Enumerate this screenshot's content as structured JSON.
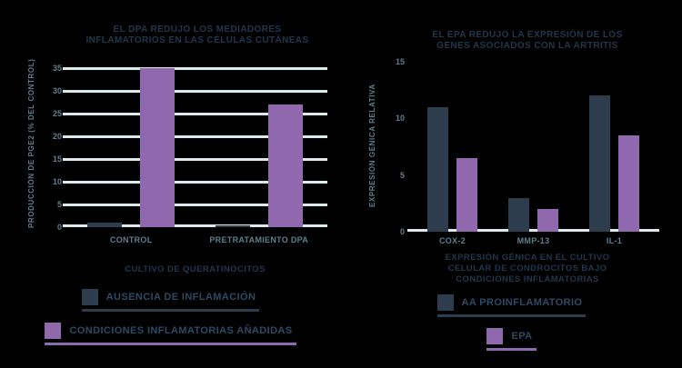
{
  "page": {
    "background": "#000000"
  },
  "colors": {
    "page_bg": "#000000",
    "dark_series": "#2E3D4E",
    "purple_series": "#9068AE",
    "title": "#22364C",
    "axis_text": "#5E7E8F",
    "legend_text": "#2E4A63",
    "gridline": "#DCE9ED"
  },
  "chart_data": [
    {
      "type": "bar",
      "title": "EL DPA REDUJO LOS MEDIADORES INFLAMATORIOS EN LAS CÉLULAS CUTÁNEAS",
      "title_lines": [
        "EL DPA REDUJO LOS MEDIADORES",
        "INFLAMATORIOS EN LAS CÉLULAS CUTÁNEAS"
      ],
      "ylabel": "PRODUCCIÓN DE PGE2 (% DEL CONTROL)",
      "xlabel_lines": [
        "CULTIVO DE QUERATINOCITOS"
      ],
      "categories": [
        "CONTROL",
        "PRETRATAMIENTO DPA"
      ],
      "series": [
        {
          "name": "AUSENCIA DE INFLAMACIÓN",
          "color_key": "dark_series",
          "values": [
            1,
            0.5
          ]
        },
        {
          "name": "CONDICIONES INFLAMATORIAS AÑADIDAS",
          "color_key": "purple_series",
          "values": [
            35,
            27
          ]
        }
      ],
      "yticks": [
        0,
        5,
        10,
        15,
        20,
        25,
        30,
        35
      ],
      "ylim": [
        0,
        35
      ],
      "grid": true,
      "legend_position": "bottom"
    },
    {
      "type": "bar",
      "title": "EL EPA REDUJO LA EXPRESIÓN DE LOS GENES ASOCIADOS CON LA ARTRITIS",
      "title_lines": [
        "EL EPA REDUJO LA EXPRESIÓN DE LOS",
        "GENES ASOCIADOS CON LA ARTRITIS"
      ],
      "ylabel": "EXPRESIÓN GÉNICA RELATIVA",
      "xlabel_lines": [
        "EXPRESIÓN GÉNICA EN EL CULTIVO",
        "CELULAR DE CONDROCITOS BAJO",
        "CONDICIONES INFLAMATORIAS"
      ],
      "categories": [
        "COX-2",
        "MMP-13",
        "IL-1"
      ],
      "series": [
        {
          "name": "AA PROINFLAMATORIO",
          "color_key": "dark_series",
          "values": [
            11,
            3,
            12
          ]
        },
        {
          "name": "EPA",
          "color_key": "purple_series",
          "values": [
            6.5,
            2,
            8.5
          ]
        }
      ],
      "yticks": [
        0,
        5,
        10,
        15
      ],
      "ylim": [
        0,
        15
      ],
      "grid": false,
      "legend_position": "bottom"
    }
  ]
}
